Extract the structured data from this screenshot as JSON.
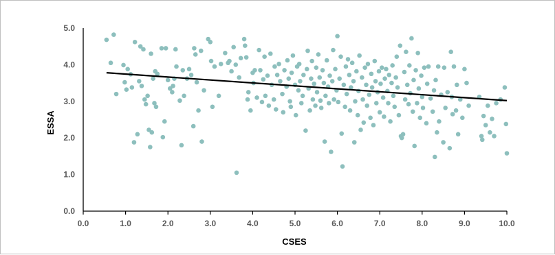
{
  "chart_data": {
    "type": "scatter",
    "title": "",
    "xlabel": "CSES",
    "ylabel": "ESSA",
    "xlim": [
      0,
      10
    ],
    "ylim": [
      0,
      5
    ],
    "x_ticks": [
      "0.0",
      "1.0",
      "2.0",
      "3.0",
      "4.0",
      "5.0",
      "6.0",
      "7.0",
      "8.0",
      "9.0",
      "10.0"
    ],
    "y_ticks": [
      "0.0",
      "1.0",
      "2.0",
      "3.0",
      "4.0",
      "5.0"
    ],
    "grid": false,
    "legend": "none",
    "point_color": "#8dbfbd",
    "trendline_color": "#000000",
    "trendline": {
      "x": [
        0.55,
        10.0
      ],
      "y": [
        3.78,
        3.02
      ]
    },
    "points": [
      [
        0.55,
        4.68
      ],
      [
        0.65,
        4.05
      ],
      [
        0.72,
        4.82
      ],
      [
        0.78,
        3.2
      ],
      [
        0.95,
        3.99
      ],
      [
        0.98,
        3.52
      ],
      [
        1.02,
        3.32
      ],
      [
        1.05,
        3.88
      ],
      [
        1.12,
        3.74
      ],
      [
        1.15,
        3.38
      ],
      [
        1.2,
        1.88
      ],
      [
        1.22,
        4.62
      ],
      [
        1.28,
        2.1
      ],
      [
        1.32,
        3.55
      ],
      [
        1.35,
        4.5
      ],
      [
        1.38,
        3.42
      ],
      [
        1.42,
        4.42
      ],
      [
        1.45,
        3.05
      ],
      [
        1.48,
        2.92
      ],
      [
        1.52,
        3.15
      ],
      [
        1.55,
        2.22
      ],
      [
        1.58,
        1.75
      ],
      [
        1.6,
        4.3
      ],
      [
        1.62,
        2.15
      ],
      [
        1.65,
        3.62
      ],
      [
        1.68,
        2.95
      ],
      [
        1.7,
        3.82
      ],
      [
        1.72,
        2.85
      ],
      [
        1.75,
        3.75
      ],
      [
        1.85,
        4.45
      ],
      [
        1.88,
        2.02
      ],
      [
        1.92,
        2.45
      ],
      [
        1.95,
        4.45
      ],
      [
        2.0,
        3.58
      ],
      [
        2.05,
        3.35
      ],
      [
        2.1,
        3.25
      ],
      [
        2.12,
        3.42
      ],
      [
        2.15,
        3.62
      ],
      [
        2.18,
        4.42
      ],
      [
        2.2,
        3.95
      ],
      [
        2.28,
        3.02
      ],
      [
        2.32,
        1.8
      ],
      [
        2.35,
        3.85
      ],
      [
        2.38,
        3.15
      ],
      [
        2.45,
        3.62
      ],
      [
        2.5,
        3.88
      ],
      [
        2.55,
        3.72
      ],
      [
        2.6,
        2.32
      ],
      [
        2.62,
        4.45
      ],
      [
        2.65,
        4.28
      ],
      [
        2.68,
        3.52
      ],
      [
        2.72,
        2.75
      ],
      [
        2.78,
        4.38
      ],
      [
        2.8,
        1.9
      ],
      [
        2.85,
        3.3
      ],
      [
        2.95,
        4.7
      ],
      [
        3.0,
        4.62
      ],
      [
        3.02,
        4.1
      ],
      [
        3.05,
        2.85
      ],
      [
        3.1,
        3.95
      ],
      [
        3.2,
        3.15
      ],
      [
        3.25,
        4.02
      ],
      [
        3.35,
        4.32
      ],
      [
        3.42,
        4.05
      ],
      [
        3.45,
        4.1
      ],
      [
        3.5,
        3.82
      ],
      [
        3.55,
        4.48
      ],
      [
        3.6,
        4.0
      ],
      [
        3.62,
        1.05
      ],
      [
        3.68,
        3.65
      ],
      [
        3.72,
        4.18
      ],
      [
        3.8,
        4.7
      ],
      [
        3.82,
        4.52
      ],
      [
        3.85,
        4.2
      ],
      [
        3.88,
        3.05
      ],
      [
        3.9,
        3.25
      ],
      [
        3.95,
        2.75
      ],
      [
        4.0,
        3.78
      ],
      [
        4.02,
        3.5
      ],
      [
        4.05,
        3.85
      ],
      [
        4.1,
        3.1
      ],
      [
        4.15,
        4.4
      ],
      [
        4.18,
        3.85
      ],
      [
        4.22,
        2.98
      ],
      [
        4.25,
        3.6
      ],
      [
        4.28,
        4.22
      ],
      [
        4.3,
        3.15
      ],
      [
        4.35,
        3.7
      ],
      [
        4.38,
        2.88
      ],
      [
        4.42,
        4.3
      ],
      [
        4.45,
        3.45
      ],
      [
        4.5,
        3.05
      ],
      [
        4.52,
        3.95
      ],
      [
        4.55,
        2.78
      ],
      [
        4.58,
        3.72
      ],
      [
        4.62,
        4.02
      ],
      [
        4.65,
        3.55
      ],
      [
        4.7,
        3.2
      ],
      [
        4.72,
        2.7
      ],
      [
        4.75,
        3.85
      ],
      [
        4.8,
        3.4
      ],
      [
        4.82,
        4.12
      ],
      [
        4.85,
        3.62
      ],
      [
        4.88,
        3.0
      ],
      [
        4.9,
        2.85
      ],
      [
        4.92,
        3.78
      ],
      [
        4.95,
        4.25
      ],
      [
        5.0,
        3.45
      ],
      [
        5.02,
        2.62
      ],
      [
        5.05,
        3.95
      ],
      [
        5.08,
        3.3
      ],
      [
        5.1,
        4.02
      ],
      [
        5.12,
        3.55
      ],
      [
        5.15,
        2.95
      ],
      [
        5.18,
        3.15
      ],
      [
        5.2,
        3.72
      ],
      [
        5.25,
        2.2
      ],
      [
        5.28,
        3.88
      ],
      [
        5.3,
        4.38
      ],
      [
        5.32,
        3.35
      ],
      [
        5.35,
        2.75
      ],
      [
        5.38,
        3.62
      ],
      [
        5.4,
        4.1
      ],
      [
        5.42,
        3.05
      ],
      [
        5.45,
        3.48
      ],
      [
        5.48,
        2.88
      ],
      [
        5.5,
        3.92
      ],
      [
        5.52,
        3.25
      ],
      [
        5.55,
        4.28
      ],
      [
        5.58,
        3.65
      ],
      [
        5.6,
        3.02
      ],
      [
        5.62,
        2.82
      ],
      [
        5.65,
        3.85
      ],
      [
        5.68,
        3.5
      ],
      [
        5.7,
        1.9
      ],
      [
        5.72,
        3.15
      ],
      [
        5.75,
        4.12
      ],
      [
        5.78,
        3.4
      ],
      [
        5.8,
        2.95
      ],
      [
        5.82,
        3.7
      ],
      [
        5.85,
        1.62
      ],
      [
        5.88,
        3.55
      ],
      [
        5.9,
        4.4
      ],
      [
        5.92,
        3.05
      ],
      [
        5.95,
        3.88
      ],
      [
        5.98,
        3.3
      ],
      [
        6.0,
        4.78
      ],
      [
        6.02,
        2.98
      ],
      [
        6.05,
        3.62
      ],
      [
        6.08,
        4.22
      ],
      [
        6.1,
        2.12
      ],
      [
        6.12,
        1.22
      ],
      [
        6.15,
        3.45
      ],
      [
        6.18,
        2.85
      ],
      [
        6.2,
        3.95
      ],
      [
        6.22,
        3.2
      ],
      [
        6.25,
        4.15
      ],
      [
        6.28,
        3.72
      ],
      [
        6.3,
        2.75
      ],
      [
        6.32,
        3.38
      ],
      [
        6.35,
        4.05
      ],
      [
        6.38,
        3.55
      ],
      [
        6.4,
        1.88
      ],
      [
        6.42,
        3.0
      ],
      [
        6.45,
        3.82
      ],
      [
        6.48,
        2.62
      ],
      [
        6.5,
        3.28
      ],
      [
        6.52,
        4.25
      ],
      [
        6.55,
        2.22
      ],
      [
        6.58,
        3.65
      ],
      [
        6.6,
        3.05
      ],
      [
        6.62,
        2.42
      ],
      [
        6.65,
        3.92
      ],
      [
        6.68,
        3.45
      ],
      [
        6.7,
        2.88
      ],
      [
        6.72,
        4.02
      ],
      [
        6.75,
        3.18
      ],
      [
        6.78,
        2.55
      ],
      [
        6.8,
        3.75
      ],
      [
        6.82,
        3.38
      ],
      [
        6.85,
        2.35
      ],
      [
        6.88,
        4.1
      ],
      [
        6.9,
        3.55
      ],
      [
        6.92,
        2.95
      ],
      [
        6.95,
        3.25
      ],
      [
        6.98,
        3.82
      ],
      [
        7.0,
        2.7
      ],
      [
        7.02,
        3.48
      ],
      [
        7.05,
        3.92
      ],
      [
        7.08,
        3.1
      ],
      [
        7.1,
        2.58
      ],
      [
        7.12,
        3.62
      ],
      [
        7.15,
        3.88
      ],
      [
        7.18,
        3.28
      ],
      [
        7.2,
        2.95
      ],
      [
        7.22,
        3.72
      ],
      [
        7.25,
        2.45
      ],
      [
        7.28,
        3.5
      ],
      [
        7.3,
        3.98
      ],
      [
        7.32,
        3.15
      ],
      [
        7.35,
        2.85
      ],
      [
        7.38,
        3.65
      ],
      [
        7.4,
        4.22
      ],
      [
        7.42,
        3.38
      ],
      [
        7.45,
        2.62
      ],
      [
        7.48,
        4.52
      ],
      [
        7.5,
        2.05
      ],
      [
        7.52,
        2.0
      ],
      [
        7.55,
        2.1
      ],
      [
        7.58,
        3.8
      ],
      [
        7.6,
        3.05
      ],
      [
        7.62,
        4.35
      ],
      [
        7.65,
        3.45
      ],
      [
        7.68,
        2.92
      ],
      [
        7.7,
        3.98
      ],
      [
        7.72,
        3.22
      ],
      [
        7.75,
        4.72
      ],
      [
        7.78,
        2.72
      ],
      [
        7.8,
        3.58
      ],
      [
        7.82,
        1.78
      ],
      [
        7.85,
        3.85
      ],
      [
        7.88,
        2.95
      ],
      [
        7.9,
        4.32
      ],
      [
        7.92,
        3.35
      ],
      [
        7.95,
        2.55
      ],
      [
        7.98,
        3.7
      ],
      [
        8.0,
        3.12
      ],
      [
        8.02,
        2.82
      ],
      [
        8.05,
        3.92
      ],
      [
        8.1,
        2.4
      ],
      [
        8.12,
        3.48
      ],
      [
        8.15,
        3.95
      ],
      [
        8.2,
        3.08
      ],
      [
        8.25,
        2.72
      ],
      [
        8.28,
        3.3
      ],
      [
        8.3,
        1.48
      ],
      [
        8.32,
        3.58
      ],
      [
        8.35,
        2.15
      ],
      [
        8.38,
        3.95
      ],
      [
        8.4,
        2.45
      ],
      [
        8.45,
        3.18
      ],
      [
        8.5,
        1.88
      ],
      [
        8.52,
        3.92
      ],
      [
        8.55,
        2.82
      ],
      [
        8.6,
        3.25
      ],
      [
        8.65,
        1.72
      ],
      [
        8.68,
        4.35
      ],
      [
        8.7,
        3.12
      ],
      [
        8.72,
        2.65
      ],
      [
        8.75,
        3.95
      ],
      [
        8.8,
        2.75
      ],
      [
        8.82,
        3.45
      ],
      [
        8.85,
        2.1
      ],
      [
        8.9,
        3.05
      ],
      [
        8.95,
        2.55
      ],
      [
        9.0,
        3.88
      ],
      [
        9.05,
        3.5
      ],
      [
        9.1,
        2.88
      ],
      [
        9.35,
        3.12
      ],
      [
        9.4,
        2.05
      ],
      [
        9.42,
        1.95
      ],
      [
        9.45,
        2.6
      ],
      [
        9.5,
        2.35
      ],
      [
        9.55,
        2.88
      ],
      [
        9.6,
        2.15
      ],
      [
        9.65,
        2.52
      ],
      [
        9.7,
        2.05
      ],
      [
        9.75,
        2.95
      ],
      [
        9.85,
        3.05
      ],
      [
        9.95,
        3.38
      ],
      [
        9.98,
        2.38
      ],
      [
        10.0,
        1.58
      ]
    ]
  }
}
